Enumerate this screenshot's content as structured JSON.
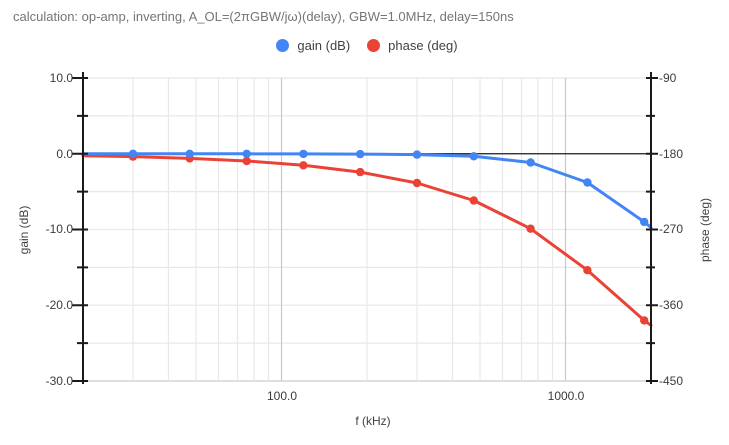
{
  "title": "calculation: op-amp, inverting, A_OL=(2πGBW/jω)(delay), GBW=1.0MHz, delay=150ns",
  "legend": [
    {
      "label": "gain (dB)",
      "color": "#4285f4"
    },
    {
      "label": "phase (deg)",
      "color": "#ea4335"
    }
  ],
  "chart_data": {
    "type": "line",
    "x": {
      "label": "f (kHz)",
      "scale": "log",
      "range_khz": [
        20,
        2000
      ],
      "tick_values": [
        100,
        1000
      ],
      "tick_labels": [
        "100.0",
        "1000.0"
      ],
      "minor_gridlines_khz": [
        30,
        40,
        50,
        60,
        70,
        80,
        90,
        200,
        300,
        400,
        500,
        600,
        700,
        800,
        900
      ]
    },
    "y_left": {
      "label": "gain (dB)",
      "range": [
        -30,
        10
      ],
      "tick_values": [
        10,
        0,
        -10,
        -20,
        -30
      ],
      "tick_labels": [
        "10.0",
        "0.0",
        "-10.0",
        "-20.0",
        "-30.0"
      ],
      "minor_step": 5,
      "zero_line_at": 0
    },
    "y_right": {
      "label": "phase (deg)",
      "range": [
        -450,
        -90
      ],
      "tick_values": [
        -90,
        -180,
        -270,
        -360,
        -450
      ],
      "tick_labels": [
        "-90",
        "-180",
        "-270",
        "-360",
        "-450"
      ],
      "minor_step": 45
    },
    "f_khz": [
      20,
      30,
      47.5,
      75.4,
      119.4,
      189.3,
      300,
      475.5,
      753.6,
      1194.3,
      1893,
      2000
    ],
    "marker_indices": [
      1,
      2,
      3,
      4,
      5,
      6,
      7,
      8,
      9,
      10
    ],
    "series": [
      {
        "name": "gain (dB)",
        "axis": "left",
        "color": "#4285f4",
        "values": [
          0,
          0,
          0,
          -0.01,
          -0.02,
          -0.04,
          -0.11,
          -0.34,
          -1.16,
          -3.79,
          -9.0,
          -9.73
        ]
      },
      {
        "name": "phase (deg)",
        "axis": "right",
        "color": "#ea4335",
        "values": [
          -182.3,
          -183.4,
          -185.5,
          -188.6,
          -193.7,
          -201.8,
          -214.7,
          -235.6,
          -269.1,
          -318.4,
          -378.0,
          -383.8
        ]
      }
    ]
  }
}
